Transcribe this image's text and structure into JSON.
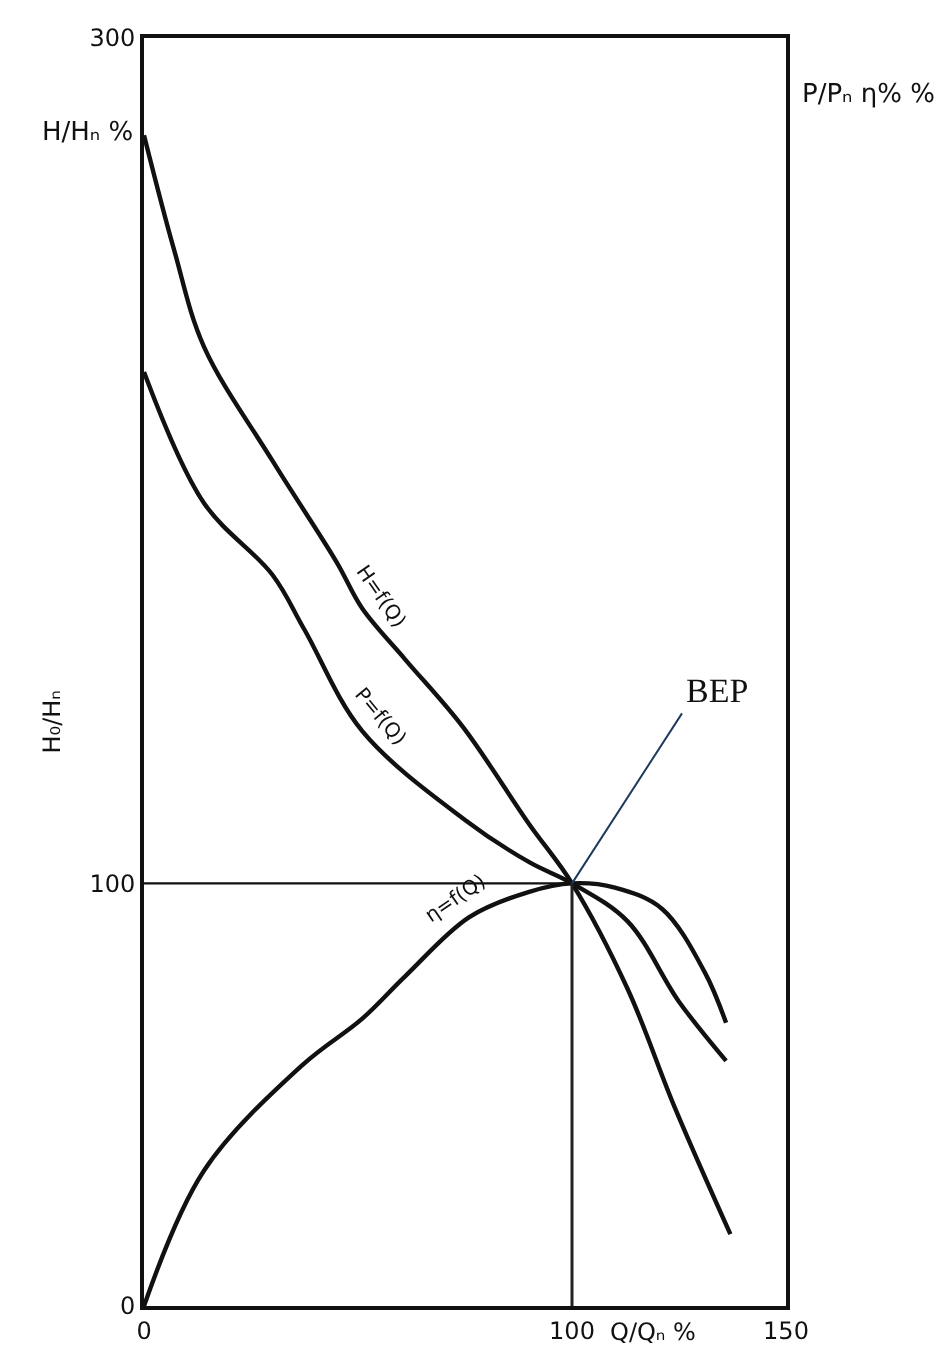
{
  "chart_data": {
    "type": "line",
    "xlabel": "Q/Qₙ %",
    "ylabel": "H/Hₙ %",
    "xlim": [
      0,
      150
    ],
    "xticks": [
      0,
      100,
      150
    ],
    "ylim": [
      0,
      300
    ],
    "yticks": [
      0,
      100,
      300
    ],
    "legend": false,
    "marker": "none",
    "line_style": "solid",
    "series": [
      {
        "name": "H=f(Q)",
        "color": "#111111",
        "x": [
          0,
          7,
          14,
          30,
          45,
          51,
          61,
          74.5,
          90,
          100,
          113,
          124,
          137
        ],
        "values": [
          277,
          250,
          227,
          200,
          176,
          165,
          153,
          137,
          114,
          100,
          75,
          47,
          17
        ]
      },
      {
        "name": "P=f(Q)",
        "color": "#111111",
        "x": [
          0,
          14,
          30,
          37.5,
          51,
          75,
          90,
          100,
          113,
          125,
          136
        ],
        "values": [
          221,
          190,
          173,
          160,
          136,
          115,
          105,
          100,
          91,
          72,
          58
        ]
      },
      {
        "name": "η=f(Q)",
        "color": "#111111",
        "x": [
          0,
          14,
          37,
          51,
          61,
          76,
          90,
          100,
          110,
          121,
          131,
          136
        ],
        "values": [
          0,
          32,
          57,
          68,
          78,
          92,
          98,
          100,
          99,
          94,
          79,
          67
        ]
      }
    ],
    "ref_lines": [
      {
        "axis": "y",
        "value": 100
      },
      {
        "axis": "x",
        "value": 100
      }
    ],
    "annotations": [
      {
        "text": "BEP",
        "x": 100,
        "y": 100
      },
      "P/Pₙ η% %",
      "H₀/Hₙ"
    ]
  }
}
